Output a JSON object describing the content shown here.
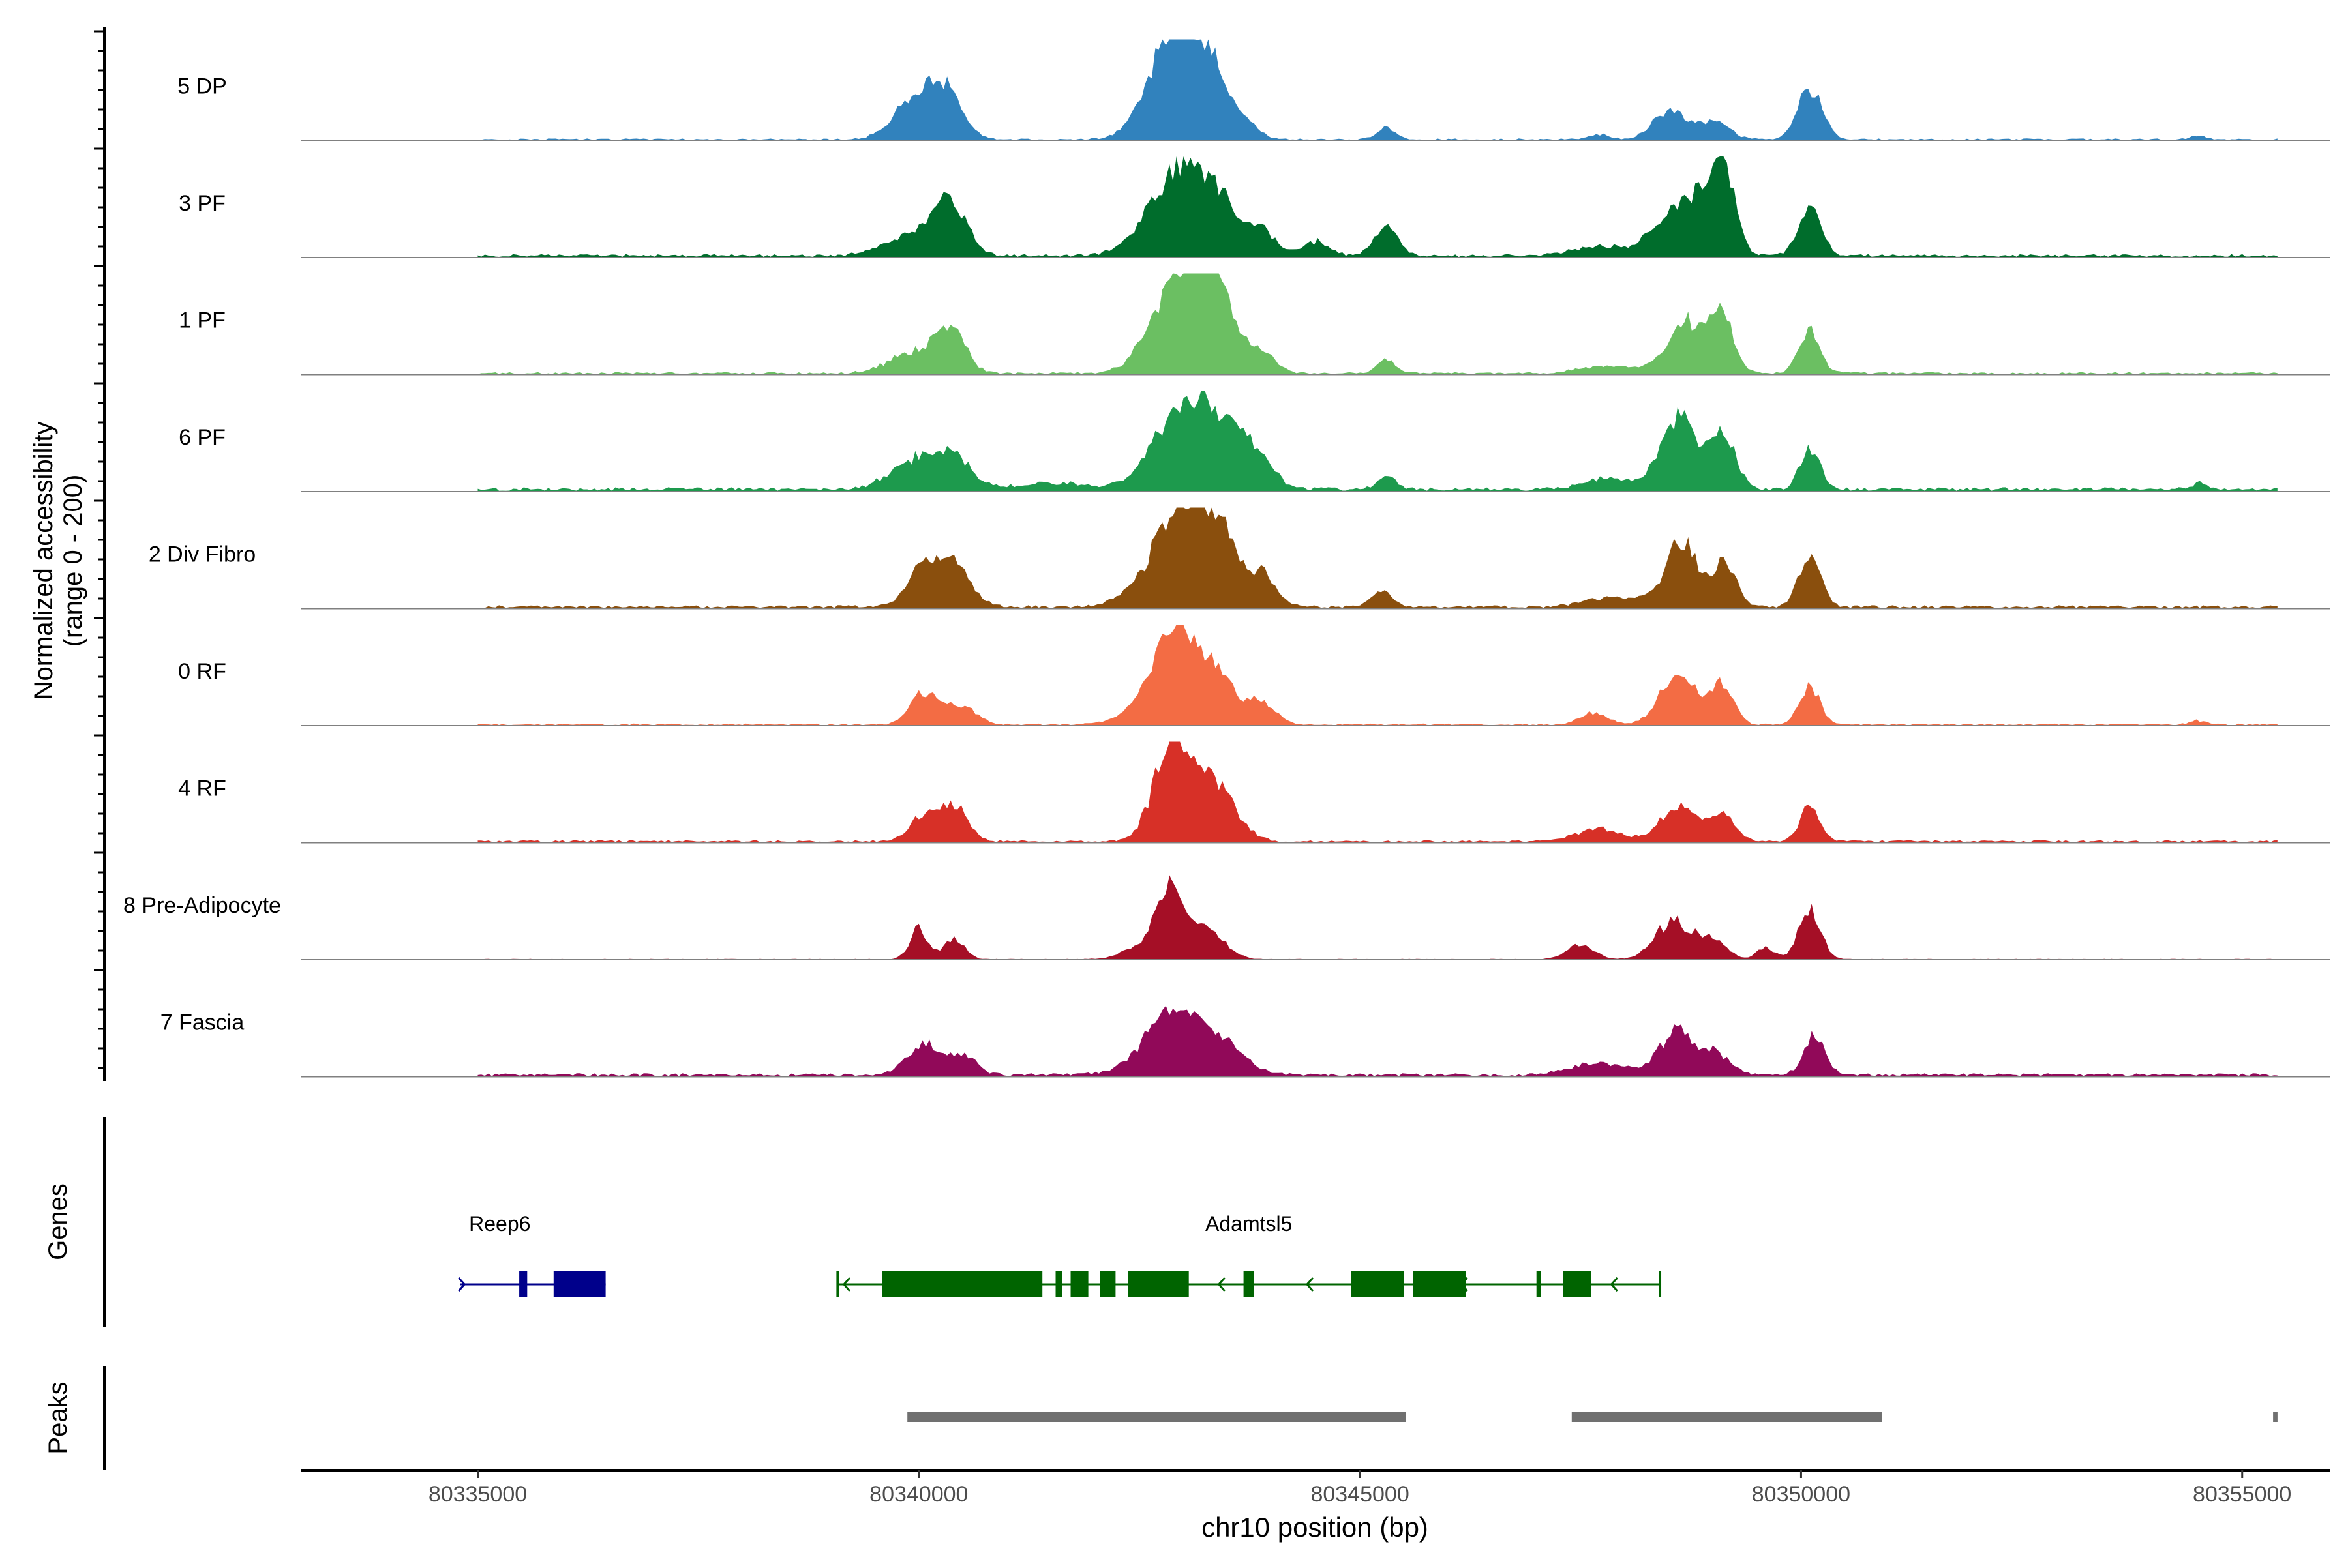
{
  "chart_data": {
    "type": "area",
    "title": "",
    "ylabel_line1": "Normalized accessibility",
    "ylabel_line2": "(range 0 - 200)",
    "xlabel": "chr10 position (bp)",
    "xlim": [
      80333000,
      80356000
    ],
    "xticks": [
      80335000,
      80340000,
      80345000,
      80350000,
      80355000
    ],
    "xtick_labels": [
      "80335000",
      "80340000",
      "80345000",
      "80350000",
      "80355000"
    ],
    "track_panel_labels": {
      "genes": "Genes",
      "peaks": "Peaks"
    },
    "series": [
      {
        "name": "5 DP",
        "color": "#3182BD",
        "base": 0.012,
        "peaks": [
          [
            80340000,
            0.45,
            250
          ],
          [
            80340350,
            0.35,
            170
          ],
          [
            80342800,
            0.5,
            250
          ],
          [
            80343000,
            0.7,
            300
          ],
          [
            80343300,
            0.45,
            200
          ],
          [
            80343700,
            0.12,
            150
          ],
          [
            80345300,
            0.12,
            100
          ],
          [
            80347700,
            0.05,
            120
          ],
          [
            80348500,
            0.28,
            180
          ],
          [
            80349000,
            0.18,
            180
          ],
          [
            80350100,
            0.5,
            140
          ],
          [
            80354500,
            0.04,
            80
          ]
        ]
      },
      {
        "name": "3 PF",
        "color": "#006D2C",
        "base": 0.02,
        "peaks": [
          [
            80339900,
            0.2,
            300
          ],
          [
            80340350,
            0.55,
            180
          ],
          [
            80342500,
            0.05,
            250
          ],
          [
            80342850,
            0.6,
            280
          ],
          [
            80343300,
            0.65,
            280
          ],
          [
            80343900,
            0.2,
            150
          ],
          [
            80344500,
            0.14,
            150
          ],
          [
            80345300,
            0.28,
            130
          ],
          [
            80347700,
            0.1,
            300
          ],
          [
            80348600,
            0.5,
            250
          ],
          [
            80349000,
            0.45,
            180
          ],
          [
            80349150,
            0.55,
            120
          ],
          [
            80350100,
            0.45,
            130
          ]
        ]
      },
      {
        "name": "1 PF",
        "color": "#6BBF62",
        "base": 0.015,
        "peaks": [
          [
            80339900,
            0.2,
            250
          ],
          [
            80340350,
            0.45,
            170
          ],
          [
            80342850,
            0.6,
            280
          ],
          [
            80343200,
            0.75,
            250
          ],
          [
            80343450,
            0.35,
            200
          ],
          [
            80343900,
            0.18,
            150
          ],
          [
            80345300,
            0.14,
            100
          ],
          [
            80347800,
            0.07,
            300
          ],
          [
            80348700,
            0.5,
            220
          ],
          [
            80349100,
            0.55,
            130
          ],
          [
            80350100,
            0.4,
            120
          ]
        ]
      },
      {
        "name": "6 PF",
        "color": "#1D9A4D",
        "base": 0.025,
        "peaks": [
          [
            80340000,
            0.3,
            300
          ],
          [
            80340400,
            0.25,
            200
          ],
          [
            80341500,
            0.06,
            400
          ],
          [
            80342850,
            0.55,
            280
          ],
          [
            80343300,
            0.7,
            260
          ],
          [
            80343800,
            0.35,
            200
          ],
          [
            80345300,
            0.12,
            100
          ],
          [
            80347800,
            0.12,
            250
          ],
          [
            80348600,
            0.7,
            200
          ],
          [
            80349100,
            0.55,
            150
          ],
          [
            80350100,
            0.42,
            110
          ],
          [
            80354500,
            0.06,
            80
          ]
        ]
      },
      {
        "name": "2 Div Fibro",
        "color": "#8A4F0D",
        "base": 0.02,
        "peaks": [
          [
            80340100,
            0.45,
            200
          ],
          [
            80340450,
            0.3,
            180
          ],
          [
            80342700,
            0.25,
            300
          ],
          [
            80343050,
            0.9,
            280
          ],
          [
            80343450,
            0.5,
            200
          ],
          [
            80343900,
            0.3,
            150
          ],
          [
            80345250,
            0.15,
            120
          ],
          [
            80347900,
            0.1,
            300
          ],
          [
            80348650,
            0.7,
            180
          ],
          [
            80349150,
            0.45,
            120
          ],
          [
            80350100,
            0.55,
            120
          ]
        ]
      },
      {
        "name": "0 RF",
        "color": "#F36C44",
        "base": 0.012,
        "peaks": [
          [
            80340050,
            0.3,
            150
          ],
          [
            80340450,
            0.2,
            180
          ],
          [
            80342700,
            0.2,
            300
          ],
          [
            80342900,
            0.7,
            250
          ],
          [
            80343350,
            0.45,
            250
          ],
          [
            80343900,
            0.2,
            150
          ],
          [
            80347650,
            0.12,
            150
          ],
          [
            80348600,
            0.5,
            200
          ],
          [
            80349100,
            0.42,
            130
          ],
          [
            80350100,
            0.4,
            110
          ],
          [
            80354500,
            0.04,
            80
          ]
        ]
      },
      {
        "name": "4 RF",
        "color": "#D73027",
        "base": 0.015,
        "peaks": [
          [
            80340050,
            0.25,
            150
          ],
          [
            80340400,
            0.35,
            150
          ],
          [
            80342850,
            0.85,
            200
          ],
          [
            80343200,
            0.5,
            220
          ],
          [
            80343500,
            0.25,
            200
          ],
          [
            80347700,
            0.12,
            250
          ],
          [
            80348600,
            0.35,
            200
          ],
          [
            80349100,
            0.25,
            150
          ],
          [
            80350100,
            0.38,
            110
          ]
        ]
      },
      {
        "name": "8 Pre-Adipocyte",
        "color": "#A50F26",
        "base": 0.005,
        "peaks": [
          [
            80340000,
            0.3,
            100
          ],
          [
            80340400,
            0.2,
            120
          ],
          [
            80342500,
            0.12,
            200
          ],
          [
            80342850,
            0.75,
            150
          ],
          [
            80343250,
            0.3,
            200
          ],
          [
            80347500,
            0.15,
            150
          ],
          [
            80348550,
            0.38,
            200
          ],
          [
            80349000,
            0.2,
            150
          ],
          [
            80349600,
            0.12,
            100
          ],
          [
            80350100,
            0.5,
            120
          ]
        ]
      },
      {
        "name": "7 Fascia",
        "color": "#910959",
        "base": 0.02,
        "peaks": [
          [
            80340050,
            0.3,
            180
          ],
          [
            80340500,
            0.2,
            150
          ],
          [
            80342700,
            0.2,
            300
          ],
          [
            80342950,
            0.45,
            300
          ],
          [
            80343450,
            0.25,
            250
          ],
          [
            80347700,
            0.12,
            300
          ],
          [
            80348600,
            0.45,
            200
          ],
          [
            80349050,
            0.2,
            150
          ],
          [
            80350150,
            0.38,
            120
          ]
        ]
      }
    ],
    "genes": [
      {
        "name": "Reep6",
        "color": "#00008B",
        "strand": "+",
        "start": 80334800,
        "end": 80336450,
        "exons": [
          [
            80335470,
            80335560
          ],
          [
            80335860,
            80336180
          ],
          [
            80336180,
            80336450
          ]
        ],
        "arrows": [
          80334850,
          80335950
        ]
      },
      {
        "name": "Adamtsl5",
        "color": "#006400",
        "strand": "-",
        "start": 80339080,
        "end": 80348400,
        "exons": [
          [
            80339580,
            80341400
          ],
          [
            80341550,
            80341620
          ],
          [
            80341720,
            80341920
          ],
          [
            80342050,
            80342230
          ],
          [
            80342370,
            80343060
          ],
          [
            80343680,
            80343800
          ],
          [
            80344900,
            80345500
          ],
          [
            80345600,
            80346200
          ],
          [
            80347000,
            80347050
          ],
          [
            80347300,
            80347620
          ]
        ],
        "arrows": [
          80339150,
          80342980,
          80343400,
          80344400,
          80346150,
          80347850
        ]
      }
    ],
    "peaks": [
      [
        80339870,
        80345520
      ],
      [
        80347400,
        80350920
      ],
      [
        80355350,
        80355400
      ]
    ],
    "peak_color": "#707070"
  }
}
